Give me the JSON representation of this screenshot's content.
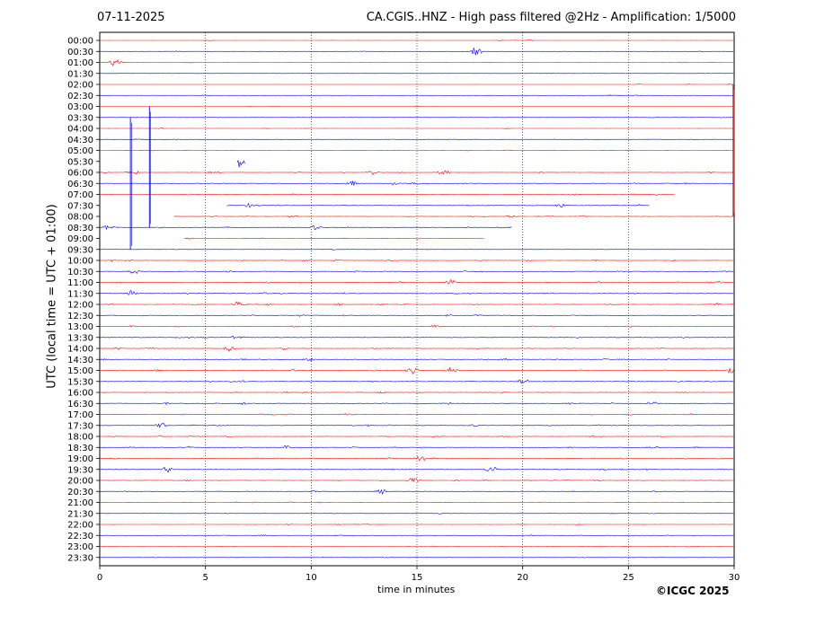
{
  "header": {
    "date": "07-11-2025",
    "title": "CA.CGIS..HNZ - High pass filtered @2Hz - Amplification: 1/5000"
  },
  "footer": {
    "xlabel": "time in minutes",
    "copyright": "©ICGC 2025"
  },
  "chart_data": {
    "type": "line",
    "subtype": "helicorder",
    "xlabel": "time in minutes",
    "ylabel": "UTC (local time = UTC + 01:00)",
    "xlim": [
      0,
      30
    ],
    "x_ticks": [
      "0",
      "5",
      "10",
      "15",
      "20",
      "25",
      "30"
    ],
    "grid_x": [
      5,
      10,
      15,
      20,
      25
    ],
    "grid_style": "dotted vertical",
    "rows": [
      "00:00",
      "00:30",
      "01:00",
      "01:30",
      "02:00",
      "02:30",
      "03:00",
      "03:30",
      "04:00",
      "04:30",
      "05:00",
      "05:30",
      "06:00",
      "06:30",
      "07:00",
      "07:30",
      "08:00",
      "08:30",
      "09:00",
      "09:30",
      "10:00",
      "10:30",
      "11:00",
      "11:30",
      "12:00",
      "12:30",
      "13:00",
      "13:30",
      "14:00",
      "14:30",
      "15:00",
      "15:30",
      "16:00",
      "16:30",
      "17:00",
      "17:30",
      "18:00",
      "18:30",
      "19:00",
      "19:30",
      "20:00",
      "20:30",
      "21:00",
      "21:30",
      "22:00",
      "22:30",
      "23:00",
      "23:30"
    ],
    "row_colors": [
      "#ff0000",
      "#0000ff"
    ],
    "noise_level": [
      0.25,
      0.35,
      0.35,
      0.2,
      0.2,
      0.3,
      0.2,
      0.25,
      0.25,
      0.45,
      0.45,
      0.55,
      0.7,
      0.8,
      0.75,
      0.75,
      0.7,
      0.65,
      0.5,
      0.3,
      0.8,
      0.85,
      0.85,
      0.9,
      0.9,
      0.9,
      0.9,
      0.9,
      0.9,
      0.9,
      0.95,
      0.9,
      0.9,
      0.9,
      0.85,
      0.85,
      0.85,
      0.85,
      0.85,
      0.85,
      0.85,
      0.7,
      0.5,
      0.4,
      0.4,
      0.45,
      0.4,
      0.35
    ],
    "events": [
      {
        "row": "00:30",
        "minute": 17.8,
        "amplitude": 1.4
      },
      {
        "row": "01:00",
        "minute": 0.7,
        "amplitude": 1.0
      },
      {
        "row": "05:30",
        "minute": 6.6,
        "amplitude": 0.9
      },
      {
        "row": "06:00",
        "minute": 1.6,
        "amplitude": 0.8
      },
      {
        "row": "06:00",
        "minute": 12.9,
        "amplitude": 0.9
      },
      {
        "row": "06:00",
        "minute": 16.3,
        "amplitude": 0.8
      },
      {
        "row": "06:30",
        "minute": 11.9,
        "amplitude": 0.9
      },
      {
        "row": "07:30",
        "minute": 7.0,
        "amplitude": 0.7
      },
      {
        "row": "07:30",
        "minute": 21.8,
        "amplitude": 0.8
      },
      {
        "row": "08:00",
        "minute": 19.4,
        "amplitude": 0.8
      },
      {
        "row": "08:30",
        "minute": 0.4,
        "amplitude": 0.8
      },
      {
        "row": "08:30",
        "minute": 10.2,
        "amplitude": 0.8
      },
      {
        "row": "10:30",
        "minute": 1.6,
        "amplitude": 0.8
      },
      {
        "row": "11:00",
        "minute": 16.6,
        "amplitude": 0.8
      },
      {
        "row": "11:30",
        "minute": 1.5,
        "amplitude": 0.8
      },
      {
        "row": "12:00",
        "minute": 6.5,
        "amplitude": 0.9
      },
      {
        "row": "14:00",
        "minute": 6.1,
        "amplitude": 0.8
      },
      {
        "row": "14:30",
        "minute": 9.9,
        "amplitude": 0.8
      },
      {
        "row": "15:00",
        "minute": 14.8,
        "amplitude": 1.1
      },
      {
        "row": "15:00",
        "minute": 16.6,
        "amplitude": 0.9
      },
      {
        "row": "15:00",
        "minute": 29.9,
        "amplitude": 1.2
      },
      {
        "row": "15:30",
        "minute": 20.0,
        "amplitude": 0.9
      },
      {
        "row": "16:30",
        "minute": 26.1,
        "amplitude": 0.9
      },
      {
        "row": "17:30",
        "minute": 2.9,
        "amplitude": 0.8
      },
      {
        "row": "18:30",
        "minute": 8.9,
        "amplitude": 0.8
      },
      {
        "row": "19:00",
        "minute": 15.2,
        "amplitude": 1.0
      },
      {
        "row": "19:30",
        "minute": 3.2,
        "amplitude": 0.8
      },
      {
        "row": "19:30",
        "minute": 18.5,
        "amplitude": 0.9
      },
      {
        "row": "20:00",
        "minute": 14.9,
        "amplitude": 1.1
      },
      {
        "row": "20:30",
        "minute": 13.3,
        "amplitude": 0.7
      }
    ],
    "spikes": [
      {
        "row": "03:30",
        "minute": 1.45,
        "span_rows": 12,
        "color": "#0000ff"
      },
      {
        "row": "03:00",
        "minute": 2.35,
        "span_rows": 11,
        "color": "#0000ff"
      },
      {
        "row": "02:00",
        "minute": 29.95,
        "span_rows": 12,
        "color": "#ff0000"
      }
    ],
    "partial_traces": [
      {
        "row": "05:30",
        "start": 6.5,
        "end": 6.9
      },
      {
        "row": "07:00",
        "start": 0,
        "end": 27.2
      },
      {
        "row": "07:30",
        "start": 6.0,
        "end": 26.0
      },
      {
        "row": "08:00",
        "start": 3.5,
        "end": 30
      },
      {
        "row": "08:30",
        "start": 0,
        "end": 19.5
      },
      {
        "row": "09:00",
        "start": 4.0,
        "end": 18.2
      }
    ]
  }
}
